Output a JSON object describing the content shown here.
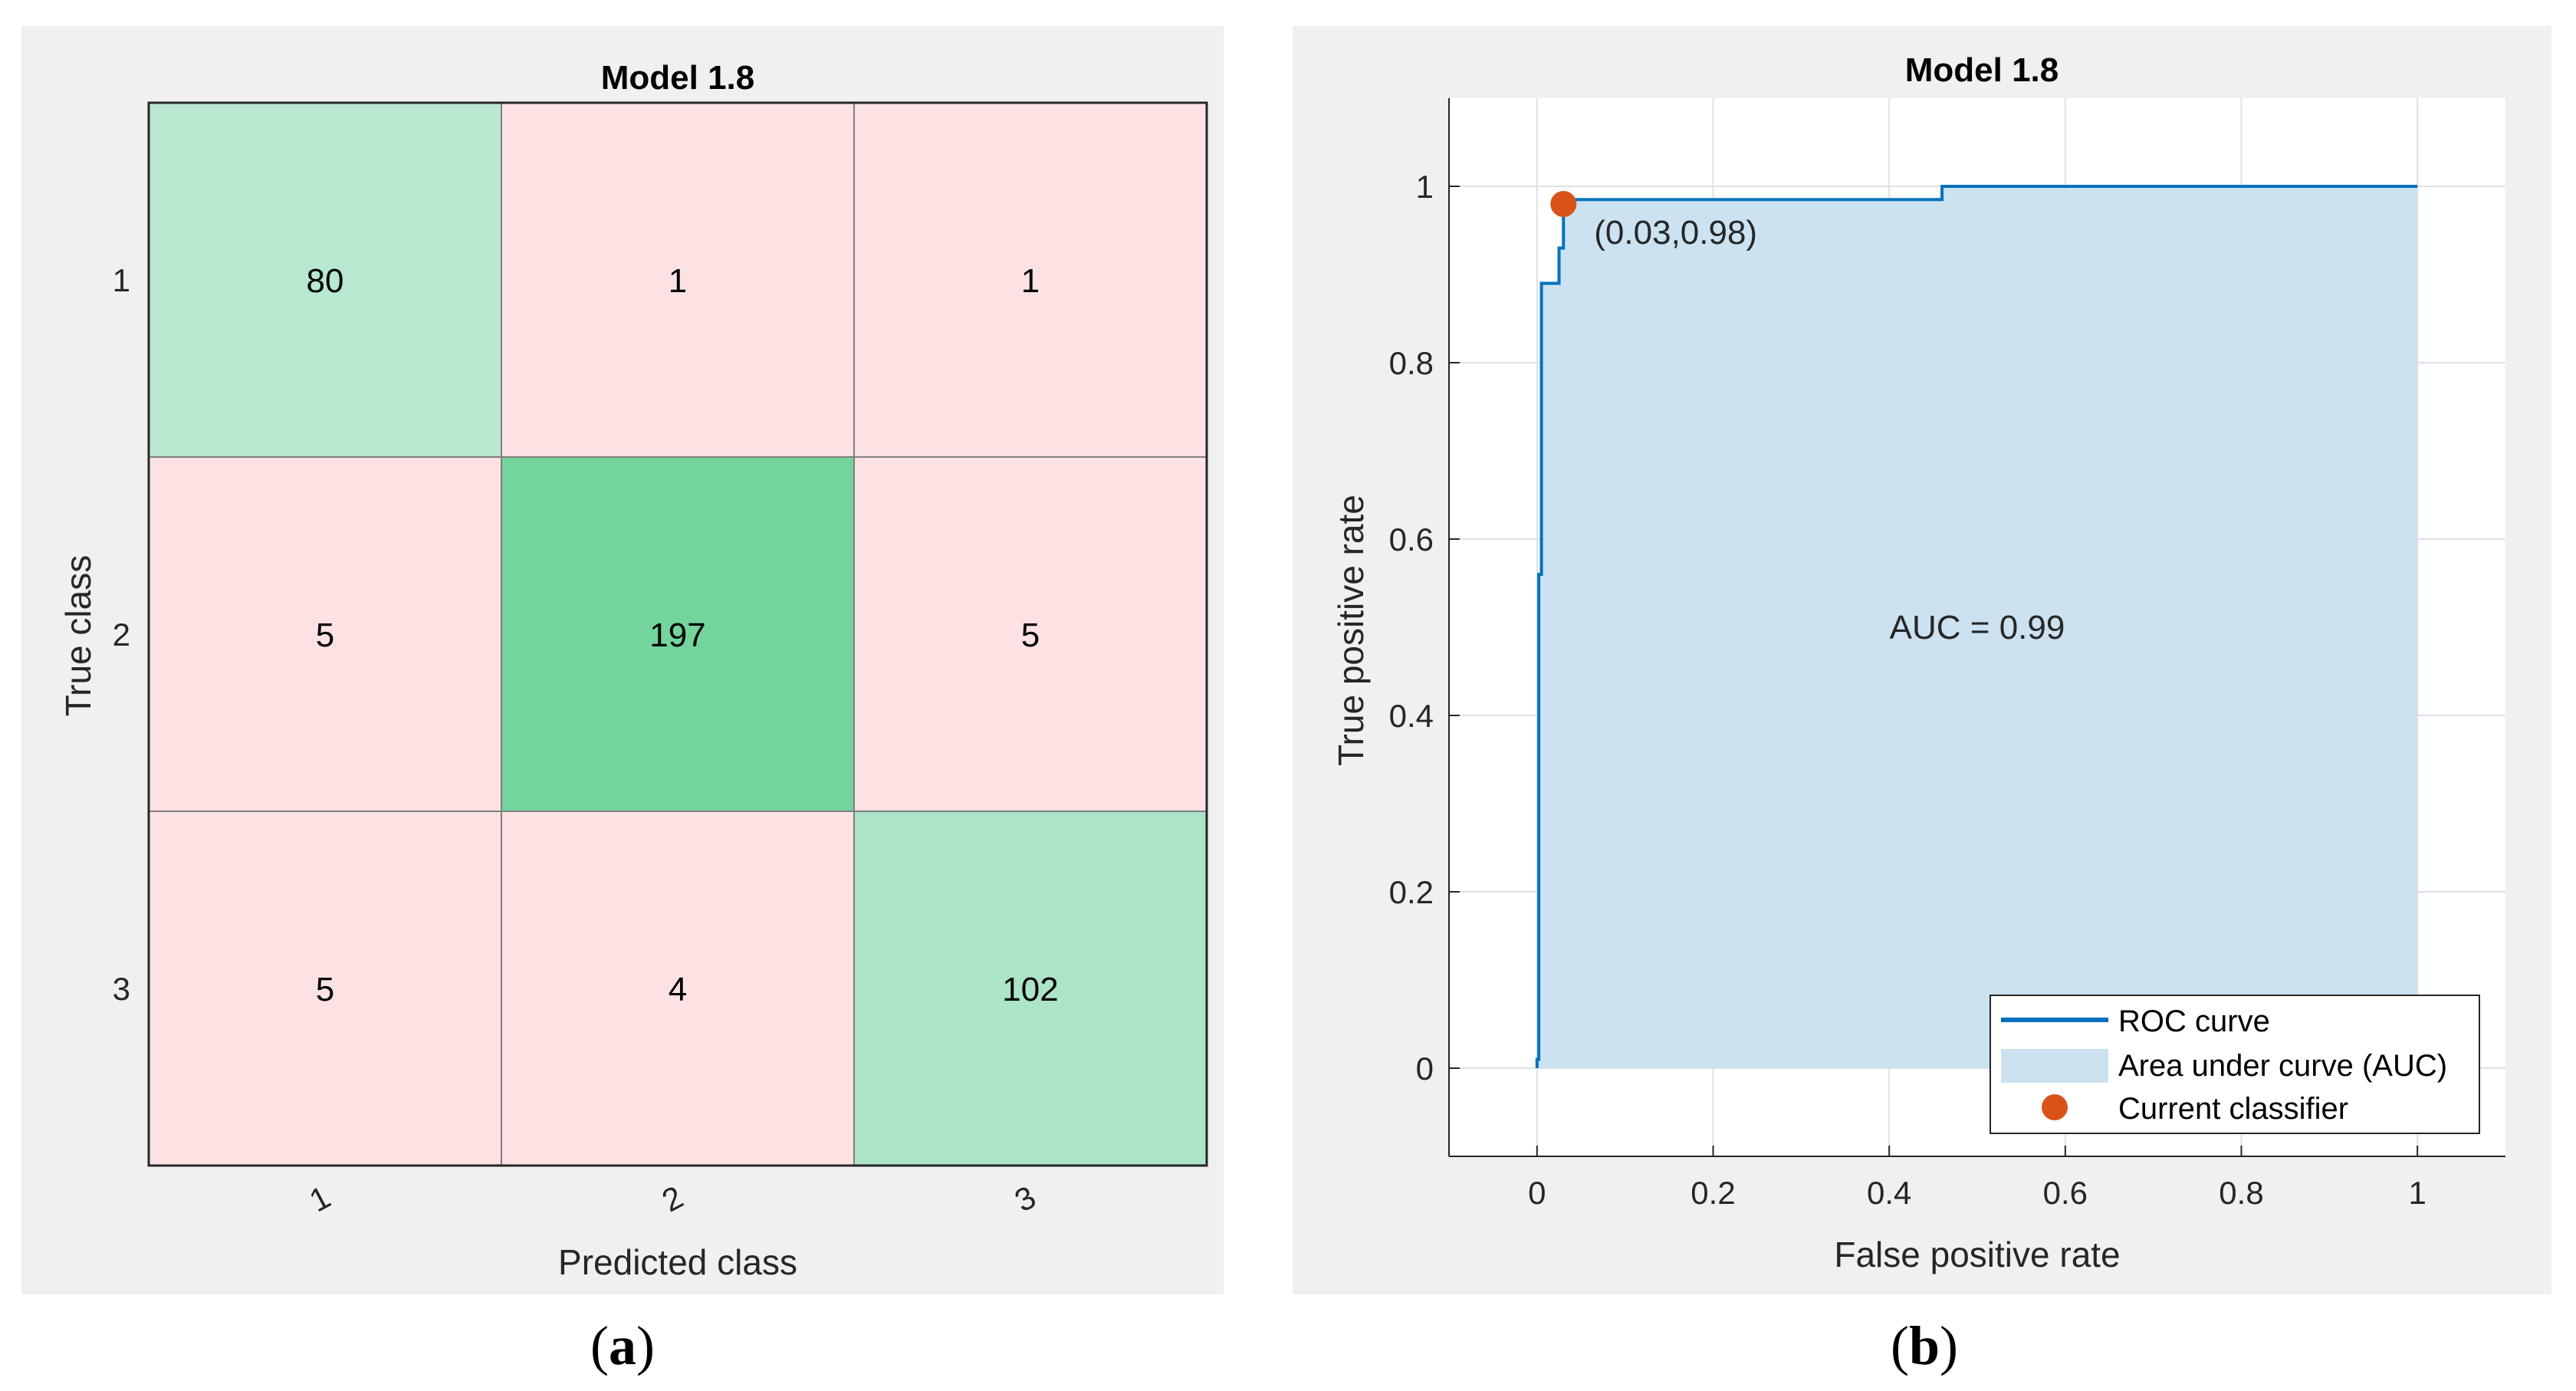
{
  "captions": {
    "a_letter": "a",
    "b_letter": "b"
  },
  "chart_data": [
    {
      "type": "heatmap",
      "title": "Model 1.8",
      "xlabel": "Predicted class",
      "ylabel": "True class",
      "x_categories": [
        "1",
        "2",
        "3"
      ],
      "y_categories": [
        "1",
        "2",
        "3"
      ],
      "values": [
        [
          80,
          1,
          1
        ],
        [
          5,
          197,
          5
        ],
        [
          5,
          4,
          102
        ]
      ],
      "colors": {
        "diag_low": "#b8e8d0",
        "diag_high": "#73d49c",
        "diag_mid": "#ade5c5",
        "offdiag": "#fde2e4",
        "border": "#7f7f7f"
      }
    },
    {
      "type": "area",
      "title": "Model 1.8",
      "xlabel": "False positive rate",
      "ylabel": "True positive rate",
      "xlim": [
        -0.1,
        1.1
      ],
      "ylim": [
        -0.1,
        1.1
      ],
      "xticks": [
        0,
        0.2,
        0.4,
        0.6,
        0.8,
        1
      ],
      "yticks": [
        0,
        0.2,
        0.4,
        0.6,
        0.8,
        1
      ],
      "xtick_labels": [
        "0",
        "0.2",
        "0.4",
        "0.6",
        "0.8",
        "1"
      ],
      "ytick_labels": [
        "0",
        "0.2",
        "0.4",
        "0.6",
        "0.8",
        "1"
      ],
      "grid": true,
      "roc_x": [
        0,
        0,
        0.002,
        0.002,
        0.005,
        0.005,
        0.025,
        0.025,
        0.03,
        0.03,
        0.03,
        0.46,
        0.46,
        1.0
      ],
      "roc_y": [
        0,
        0.01,
        0.01,
        0.56,
        0.56,
        0.89,
        0.89,
        0.93,
        0.93,
        0.98,
        0.985,
        0.985,
        1.0,
        1.0
      ],
      "operating_point": {
        "x": 0.03,
        "y": 0.98,
        "label": "(0.03,0.98)"
      },
      "auc_label": "AUC = 0.99",
      "legend": {
        "position": "bottom-right",
        "entries": [
          "ROC curve",
          "Area under curve (AUC)",
          "Current classifier"
        ]
      },
      "colors": {
        "curve": "#0072bd",
        "area": "#cce2f0",
        "point": "#d95319",
        "grid": "#e0e0e0"
      }
    }
  ]
}
